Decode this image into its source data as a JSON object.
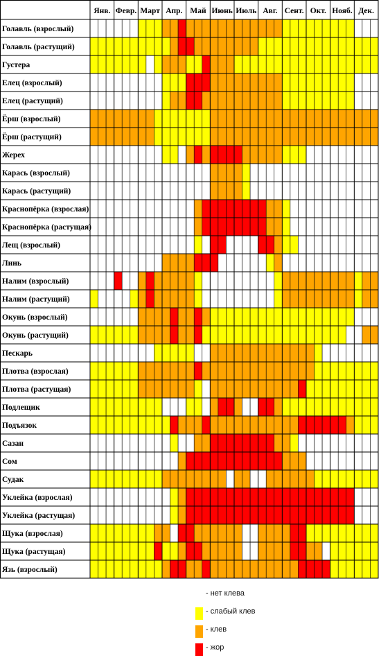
{
  "chart_data": {
    "type": "heatmap",
    "months": [
      "Янв.",
      "Февр.",
      "Март",
      "Апр.",
      "Май",
      "Июнь",
      "Июль",
      "Авг.",
      "Сент.",
      "Окт.",
      "Нояб.",
      "Дек."
    ],
    "periods_per_month": 3,
    "levels": [
      {
        "code": 0,
        "label": "- нет клева",
        "color": "#FFFFFF"
      },
      {
        "code": 1,
        "label": "- слабый клев",
        "color": "#FFFF00"
      },
      {
        "code": 2,
        "label": "- клев",
        "color": "#FFA500"
      },
      {
        "code": 3,
        "label": "- жор",
        "color": "#FF0000"
      }
    ],
    "rows": [
      {
        "name": "Голавль (взрослый)",
        "values": [
          0,
          0,
          0,
          0,
          0,
          0,
          1,
          1,
          1,
          2,
          2,
          3,
          2,
          2,
          2,
          2,
          2,
          2,
          2,
          2,
          2,
          2,
          2,
          2,
          1,
          1,
          1,
          1,
          1,
          1,
          1,
          1,
          1,
          0,
          0,
          0
        ]
      },
      {
        "name": "Голавль (растущий)",
        "values": [
          1,
          1,
          1,
          1,
          1,
          1,
          1,
          1,
          1,
          1,
          2,
          3,
          3,
          2,
          2,
          2,
          2,
          2,
          2,
          2,
          2,
          1,
          1,
          1,
          1,
          1,
          1,
          1,
          1,
          1,
          1,
          1,
          1,
          1,
          1,
          1
        ]
      },
      {
        "name": "Густера",
        "values": [
          1,
          1,
          1,
          1,
          1,
          1,
          1,
          0,
          1,
          2,
          2,
          2,
          1,
          1,
          3,
          2,
          2,
          2,
          1,
          1,
          1,
          1,
          1,
          1,
          1,
          1,
          1,
          1,
          1,
          1,
          1,
          1,
          1,
          1,
          1,
          1
        ]
      },
      {
        "name": "Елец (взрослый)",
        "values": [
          0,
          0,
          0,
          0,
          0,
          0,
          0,
          0,
          0,
          1,
          1,
          1,
          3,
          3,
          3,
          2,
          2,
          2,
          2,
          2,
          2,
          2,
          2,
          2,
          1,
          1,
          1,
          1,
          1,
          1,
          1,
          1,
          1,
          0,
          0,
          0
        ]
      },
      {
        "name": "Елец (растущий)",
        "values": [
          0,
          0,
          0,
          0,
          0,
          0,
          0,
          0,
          0,
          1,
          2,
          2,
          3,
          3,
          2,
          2,
          2,
          2,
          2,
          2,
          2,
          2,
          2,
          2,
          1,
          1,
          1,
          1,
          1,
          1,
          1,
          1,
          1,
          0,
          0,
          0
        ]
      },
      {
        "name": "Ёрш (взрослый)",
        "values": [
          2,
          2,
          2,
          2,
          2,
          2,
          2,
          2,
          1,
          1,
          1,
          1,
          1,
          1,
          1,
          2,
          2,
          2,
          2,
          2,
          2,
          2,
          2,
          2,
          2,
          2,
          2,
          2,
          2,
          2,
          2,
          2,
          2,
          2,
          2,
          2
        ]
      },
      {
        "name": "Ёрш (растущий)",
        "values": [
          2,
          2,
          2,
          2,
          2,
          2,
          2,
          2,
          1,
          1,
          1,
          1,
          1,
          1,
          1,
          2,
          2,
          2,
          2,
          2,
          2,
          2,
          2,
          2,
          2,
          2,
          2,
          2,
          2,
          2,
          2,
          2,
          2,
          2,
          2,
          2
        ]
      },
      {
        "name": "Жерех",
        "values": [
          0,
          0,
          0,
          0,
          0,
          0,
          0,
          0,
          0,
          1,
          1,
          0,
          2,
          3,
          2,
          3,
          3,
          3,
          3,
          2,
          2,
          2,
          2,
          2,
          1,
          1,
          1,
          0,
          0,
          0,
          0,
          0,
          0,
          0,
          0,
          0
        ]
      },
      {
        "name": "Карась (взрослый)",
        "values": [
          0,
          0,
          0,
          0,
          0,
          0,
          0,
          0,
          0,
          0,
          0,
          0,
          0,
          0,
          0,
          2,
          2,
          2,
          2,
          1,
          0,
          0,
          0,
          0,
          0,
          0,
          0,
          0,
          0,
          0,
          0,
          0,
          0,
          0,
          0,
          0
        ]
      },
      {
        "name": "Карась (растущий)",
        "values": [
          0,
          0,
          0,
          0,
          0,
          0,
          0,
          0,
          0,
          0,
          0,
          0,
          0,
          0,
          0,
          2,
          2,
          2,
          2,
          1,
          0,
          0,
          0,
          0,
          0,
          0,
          0,
          0,
          0,
          0,
          0,
          0,
          0,
          0,
          0,
          0
        ]
      },
      {
        "name": "Краснопёрка (взрослая)",
        "values": [
          0,
          0,
          0,
          0,
          0,
          0,
          0,
          0,
          0,
          0,
          0,
          0,
          0,
          2,
          3,
          3,
          3,
          3,
          3,
          3,
          3,
          3,
          2,
          2,
          1,
          0,
          0,
          0,
          0,
          0,
          0,
          0,
          0,
          0,
          0,
          0
        ]
      },
      {
        "name": "Краснопёрка (растущая)",
        "values": [
          0,
          0,
          0,
          0,
          0,
          0,
          0,
          0,
          0,
          0,
          0,
          0,
          0,
          2,
          3,
          3,
          3,
          3,
          3,
          3,
          3,
          3,
          2,
          2,
          1,
          0,
          0,
          0,
          0,
          0,
          0,
          0,
          0,
          0,
          0,
          0
        ]
      },
      {
        "name": "Лещ (взрослый)",
        "values": [
          0,
          0,
          0,
          0,
          0,
          0,
          0,
          0,
          0,
          0,
          0,
          0,
          0,
          1,
          0,
          3,
          3,
          0,
          0,
          0,
          0,
          3,
          3,
          2,
          1,
          1,
          0,
          0,
          0,
          0,
          0,
          0,
          0,
          0,
          0,
          0
        ]
      },
      {
        "name": "Линь",
        "values": [
          0,
          0,
          0,
          0,
          0,
          0,
          0,
          0,
          0,
          2,
          2,
          2,
          2,
          3,
          3,
          3,
          0,
          0,
          0,
          0,
          0,
          0,
          1,
          2,
          0,
          0,
          0,
          0,
          0,
          0,
          0,
          0,
          0,
          0,
          0,
          0
        ]
      },
      {
        "name": "Налим (взрослый)",
        "values": [
          0,
          0,
          0,
          3,
          0,
          0,
          2,
          3,
          2,
          2,
          2,
          2,
          2,
          1,
          0,
          0,
          0,
          0,
          0,
          0,
          0,
          0,
          0,
          1,
          2,
          2,
          2,
          2,
          2,
          2,
          2,
          2,
          2,
          1,
          2,
          2
        ]
      },
      {
        "name": "Налим (растущий)",
        "values": [
          1,
          0,
          0,
          0,
          0,
          1,
          2,
          3,
          2,
          2,
          2,
          2,
          2,
          1,
          0,
          0,
          0,
          0,
          0,
          0,
          0,
          0,
          0,
          1,
          2,
          2,
          2,
          2,
          2,
          2,
          2,
          2,
          2,
          1,
          2,
          2
        ]
      },
      {
        "name": "Окунь (взрослый)",
        "values": [
          0,
          0,
          0,
          0,
          0,
          0,
          2,
          2,
          2,
          2,
          3,
          2,
          2,
          3,
          2,
          1,
          1,
          1,
          1,
          1,
          1,
          1,
          1,
          1,
          1,
          1,
          1,
          1,
          1,
          1,
          1,
          1,
          1,
          0,
          0,
          0
        ]
      },
      {
        "name": "Окунь (растущий)",
        "values": [
          1,
          1,
          1,
          1,
          1,
          1,
          2,
          2,
          2,
          2,
          3,
          2,
          2,
          3,
          1,
          1,
          1,
          1,
          1,
          1,
          1,
          1,
          1,
          1,
          1,
          1,
          1,
          1,
          1,
          1,
          1,
          1,
          0,
          0,
          2,
          2
        ]
      },
      {
        "name": "Пескарь",
        "values": [
          0,
          0,
          0,
          0,
          0,
          0,
          0,
          0,
          1,
          1,
          1,
          1,
          1,
          0,
          0,
          2,
          2,
          2,
          2,
          2,
          2,
          2,
          2,
          2,
          2,
          2,
          2,
          2,
          1,
          0,
          0,
          0,
          0,
          0,
          0,
          0
        ]
      },
      {
        "name": "Плотва (взрослая)",
        "values": [
          1,
          1,
          1,
          1,
          1,
          1,
          2,
          2,
          2,
          2,
          2,
          2,
          2,
          3,
          2,
          2,
          2,
          2,
          2,
          2,
          2,
          2,
          2,
          2,
          2,
          2,
          2,
          2,
          1,
          1,
          1,
          1,
          1,
          1,
          1,
          1
        ]
      },
      {
        "name": "Плотва (растущая)",
        "values": [
          1,
          1,
          1,
          1,
          1,
          1,
          2,
          2,
          2,
          2,
          2,
          2,
          2,
          1,
          0,
          2,
          2,
          2,
          2,
          2,
          2,
          2,
          2,
          2,
          2,
          2,
          3,
          1,
          1,
          1,
          1,
          1,
          1,
          1,
          1,
          1
        ]
      },
      {
        "name": "Подлещик",
        "values": [
          1,
          1,
          1,
          1,
          1,
          1,
          1,
          1,
          1,
          0,
          0,
          0,
          1,
          1,
          0,
          2,
          3,
          3,
          2,
          0,
          0,
          3,
          3,
          2,
          1,
          1,
          1,
          1,
          1,
          1,
          1,
          1,
          1,
          1,
          1,
          1
        ]
      },
      {
        "name": "Подъязок",
        "values": [
          1,
          1,
          1,
          1,
          1,
          1,
          1,
          1,
          1,
          1,
          3,
          2,
          2,
          2,
          3,
          2,
          2,
          2,
          2,
          2,
          2,
          2,
          2,
          2,
          2,
          2,
          3,
          3,
          3,
          3,
          3,
          3,
          2,
          1,
          1,
          1
        ]
      },
      {
        "name": "Сазан",
        "values": [
          0,
          0,
          0,
          0,
          0,
          0,
          0,
          0,
          0,
          0,
          1,
          0,
          0,
          2,
          2,
          3,
          3,
          3,
          3,
          3,
          3,
          3,
          3,
          2,
          2,
          1,
          0,
          0,
          0,
          0,
          0,
          0,
          0,
          0,
          0,
          0
        ]
      },
      {
        "name": "Сом",
        "values": [
          0,
          0,
          0,
          0,
          0,
          0,
          0,
          0,
          0,
          0,
          0,
          2,
          3,
          3,
          3,
          3,
          3,
          3,
          3,
          3,
          3,
          3,
          3,
          3,
          2,
          2,
          2,
          0,
          0,
          0,
          0,
          0,
          0,
          0,
          0,
          0
        ]
      },
      {
        "name": "Судак",
        "values": [
          1,
          1,
          1,
          1,
          1,
          1,
          1,
          1,
          1,
          2,
          2,
          2,
          2,
          2,
          2,
          2,
          2,
          0,
          2,
          2,
          0,
          0,
          2,
          2,
          2,
          2,
          2,
          2,
          1,
          1,
          1,
          1,
          1,
          1,
          1,
          1
        ]
      },
      {
        "name": "Уклейка (взрослая)",
        "values": [
          0,
          0,
          0,
          0,
          0,
          0,
          0,
          0,
          0,
          0,
          1,
          2,
          3,
          3,
          3,
          3,
          3,
          3,
          3,
          3,
          3,
          3,
          3,
          3,
          3,
          3,
          3,
          3,
          3,
          3,
          3,
          3,
          3,
          0,
          0,
          0
        ]
      },
      {
        "name": "Уклейка (растущая)",
        "values": [
          0,
          0,
          0,
          0,
          0,
          0,
          0,
          0,
          0,
          0,
          1,
          2,
          3,
          3,
          3,
          3,
          3,
          3,
          3,
          3,
          3,
          3,
          3,
          3,
          3,
          3,
          3,
          3,
          3,
          3,
          3,
          3,
          3,
          0,
          0,
          0
        ]
      },
      {
        "name": "Щука (взрослая)",
        "values": [
          1,
          1,
          1,
          1,
          1,
          1,
          1,
          1,
          2,
          2,
          0,
          3,
          3,
          2,
          2,
          2,
          2,
          2,
          2,
          0,
          0,
          2,
          2,
          2,
          2,
          3,
          3,
          1,
          1,
          1,
          1,
          1,
          1,
          1,
          1,
          1
        ]
      },
      {
        "name": "Щука (растущая)",
        "values": [
          1,
          1,
          1,
          1,
          1,
          1,
          1,
          1,
          3,
          1,
          1,
          2,
          3,
          3,
          2,
          2,
          2,
          2,
          2,
          0,
          0,
          2,
          2,
          2,
          2,
          3,
          3,
          2,
          2,
          0,
          1,
          1,
          1,
          1,
          1,
          1
        ]
      },
      {
        "name": "Язь (взрослый)",
        "values": [
          1,
          1,
          1,
          1,
          1,
          1,
          1,
          1,
          1,
          2,
          3,
          3,
          2,
          2,
          3,
          2,
          2,
          2,
          2,
          2,
          2,
          2,
          2,
          2,
          2,
          2,
          3,
          3,
          3,
          3,
          1,
          1,
          1,
          1,
          1,
          1
        ]
      }
    ]
  }
}
